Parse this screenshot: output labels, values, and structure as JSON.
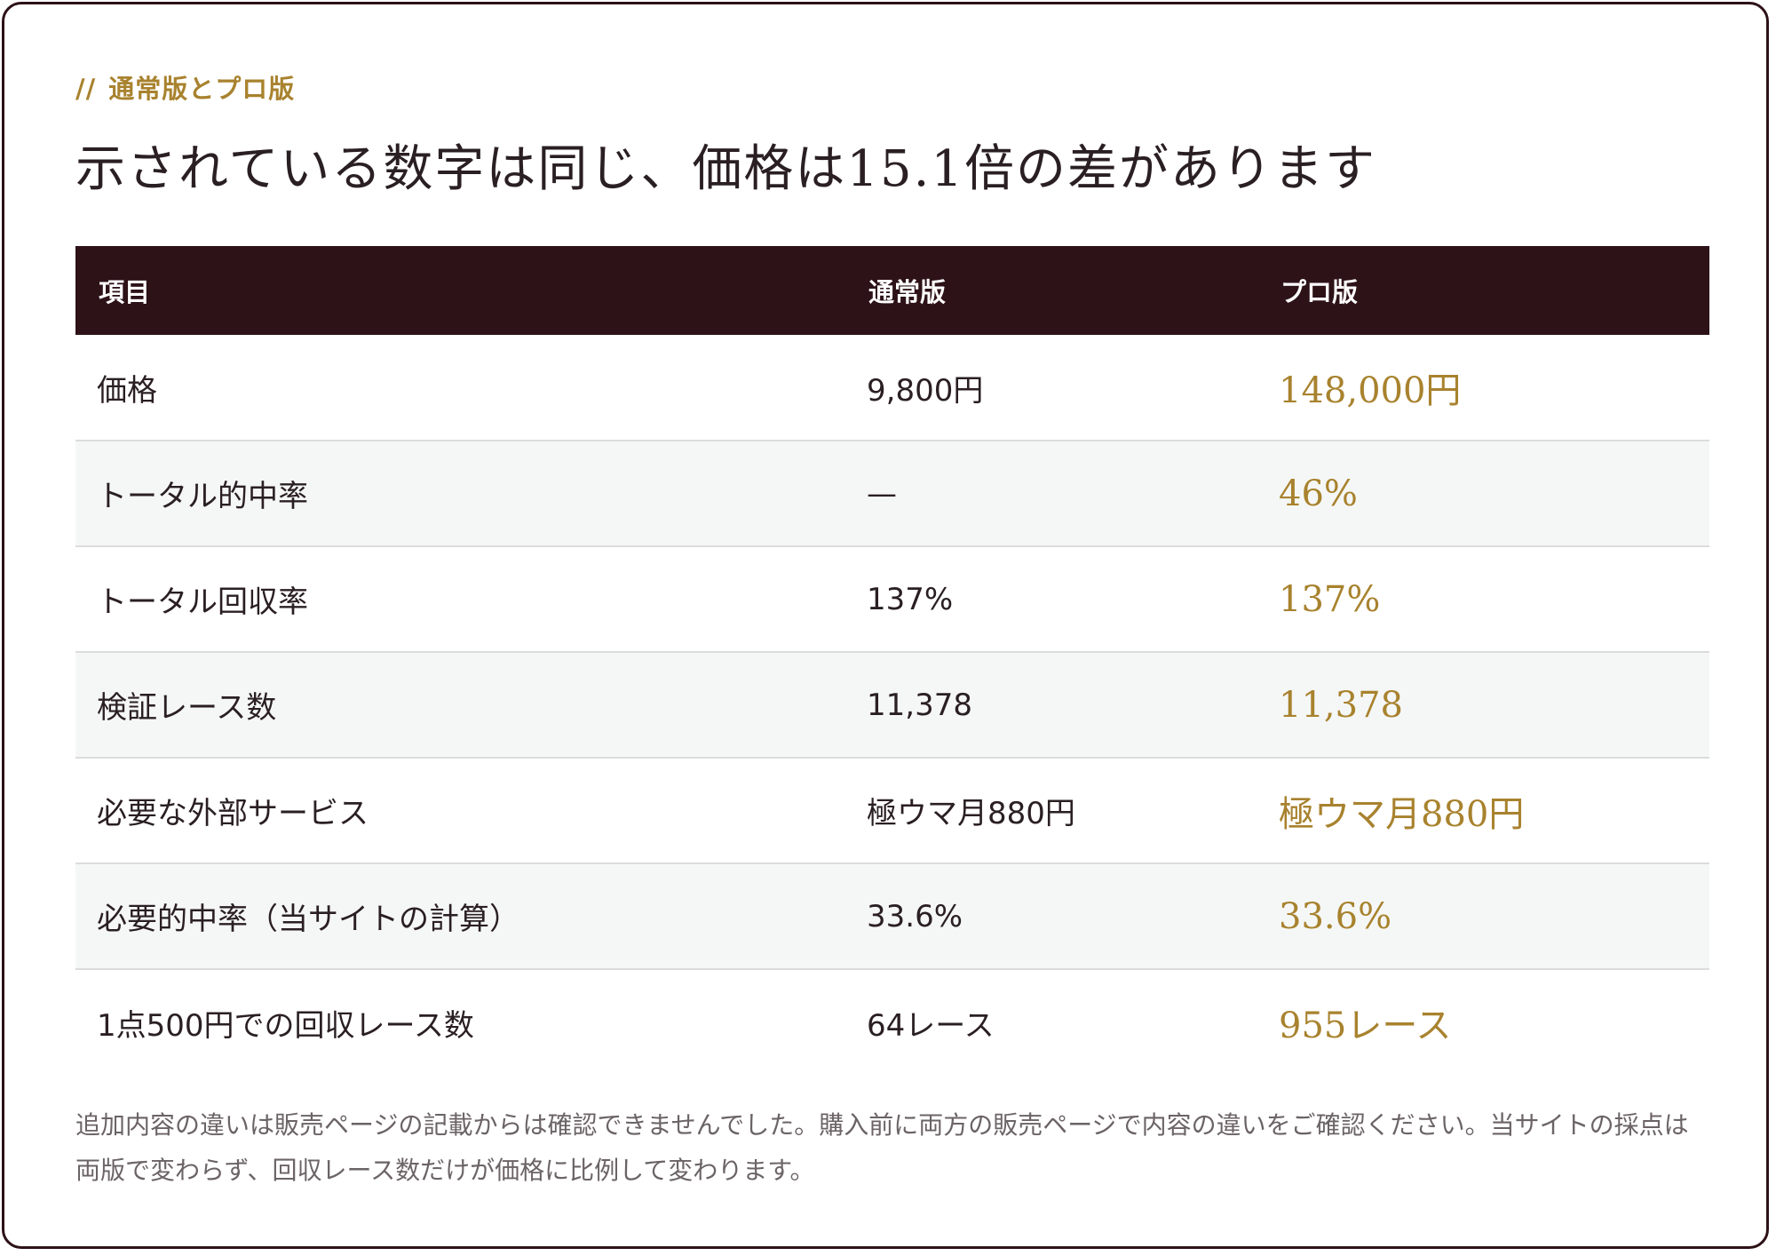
{
  "eyebrow": {
    "slashes": "//",
    "label": "通常版とプロ版"
  },
  "headline": "示されている数字は同じ、価格は15.1倍の差があります",
  "table": {
    "headers": [
      "項目",
      "通常版",
      "プロ版"
    ],
    "rows": [
      {
        "item": "価格",
        "standard": "9,800円",
        "pro": "148,000円"
      },
      {
        "item": "トータル的中率",
        "standard": "—",
        "pro": "46%"
      },
      {
        "item": "トータル回収率",
        "standard": "137%",
        "pro": "137%"
      },
      {
        "item": "検証レース数",
        "standard": "11,378",
        "pro": "11,378"
      },
      {
        "item": "必要な外部サービス",
        "standard": "極ウマ月880円",
        "pro": "極ウマ月880円"
      },
      {
        "item": "必要的中率（当サイトの計算）",
        "standard": "33.6%",
        "pro": "33.6%"
      },
      {
        "item": "1点500円での回収レース数",
        "standard": "64レース",
        "pro": "955レース"
      }
    ]
  },
  "note": "追加内容の違いは販売ページの記載からは確認できませんでした。購入前に両方の販売ページで内容の違いをご確認ください。当サイトの採点は両版で変わらず、回収レース数だけが価格に比例して変わります。",
  "colors": {
    "header_bg": "#2d1218",
    "accent_gold": "#a8822e",
    "stripe_bg": "#f5f7f6"
  }
}
